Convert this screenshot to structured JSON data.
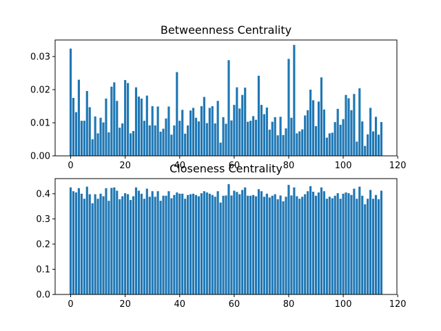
{
  "chart_data": [
    {
      "type": "bar",
      "title": "Betweenness Centrality",
      "xlabel": "",
      "ylabel": "",
      "xlim": [
        -5.7,
        119.7
      ],
      "ylim": [
        0,
        0.035
      ],
      "xticks": [
        0,
        20,
        40,
        60,
        80,
        100,
        120
      ],
      "yticks": [
        0.0,
        0.01,
        0.02,
        0.03
      ],
      "xtick_labels": [
        "0",
        "20",
        "40",
        "60",
        "80",
        "100",
        "120"
      ],
      "ytick_labels": [
        "0.00",
        "0.01",
        "0.02",
        "0.03"
      ],
      "grid": false,
      "color": "#1f77b4",
      "x": [
        0,
        1,
        2,
        3,
        4,
        5,
        6,
        7,
        8,
        9,
        10,
        11,
        12,
        13,
        14,
        15,
        16,
        17,
        18,
        19,
        20,
        21,
        22,
        23,
        24,
        25,
        26,
        27,
        28,
        29,
        30,
        31,
        32,
        33,
        34,
        35,
        36,
        37,
        38,
        39,
        40,
        41,
        42,
        43,
        44,
        45,
        46,
        47,
        48,
        49,
        50,
        51,
        52,
        53,
        54,
        55,
        56,
        57,
        58,
        59,
        60,
        61,
        62,
        63,
        64,
        65,
        66,
        67,
        68,
        69,
        70,
        71,
        72,
        73,
        74,
        75,
        76,
        77,
        78,
        79,
        80,
        81,
        82,
        83,
        84,
        85,
        86,
        87,
        88,
        89,
        90,
        91,
        92,
        93,
        94,
        95,
        96,
        97,
        98,
        99,
        100,
        101,
        102,
        103,
        104,
        105,
        106,
        107,
        108,
        109,
        110,
        111,
        112,
        113,
        114
      ],
      "values": [
        0.0324,
        0.0175,
        0.0132,
        0.023,
        0.0106,
        0.0106,
        0.0196,
        0.0147,
        0.005,
        0.0119,
        0.0068,
        0.0115,
        0.0101,
        0.0173,
        0.0071,
        0.0209,
        0.0222,
        0.0166,
        0.0085,
        0.0098,
        0.0229,
        0.022,
        0.0068,
        0.0075,
        0.0207,
        0.0179,
        0.0173,
        0.0106,
        0.0182,
        0.0092,
        0.015,
        0.0092,
        0.0149,
        0.0073,
        0.0082,
        0.0113,
        0.0149,
        0.0064,
        0.0092,
        0.0253,
        0.0106,
        0.0139,
        0.0067,
        0.0092,
        0.0137,
        0.0145,
        0.0115,
        0.0104,
        0.015,
        0.0178,
        0.0099,
        0.0145,
        0.015,
        0.0098,
        0.0166,
        0.004,
        0.0117,
        0.0097,
        0.0289,
        0.0107,
        0.0154,
        0.0207,
        0.0143,
        0.0184,
        0.0206,
        0.0103,
        0.0106,
        0.012,
        0.0109,
        0.0242,
        0.0154,
        0.0126,
        0.0146,
        0.0079,
        0.0103,
        0.0117,
        0.0062,
        0.0118,
        0.0063,
        0.0083,
        0.0293,
        0.0115,
        0.0335,
        0.0068,
        0.0074,
        0.008,
        0.0122,
        0.0138,
        0.02,
        0.0168,
        0.009,
        0.0164,
        0.0237,
        0.014,
        0.0055,
        0.0068,
        0.007,
        0.0102,
        0.0142,
        0.0094,
        0.0111,
        0.0184,
        0.0174,
        0.0138,
        0.0187,
        0.0043,
        0.0204,
        0.0104,
        0.003,
        0.0065,
        0.0145,
        0.0074,
        0.0118,
        0.0064,
        0.0102
      ]
    },
    {
      "type": "bar",
      "title": "Closeness Centrality",
      "xlabel": "",
      "ylabel": "",
      "xlim": [
        -5.7,
        119.7
      ],
      "ylim": [
        0,
        0.46
      ],
      "xticks": [
        0,
        20,
        40,
        60,
        80,
        100,
        120
      ],
      "yticks": [
        0.0,
        0.1,
        0.2,
        0.3,
        0.4
      ],
      "xtick_labels": [
        "0",
        "20",
        "40",
        "60",
        "80",
        "100",
        "120"
      ],
      "ytick_labels": [
        "0.0",
        "0.1",
        "0.2",
        "0.3",
        "0.4"
      ],
      "grid": false,
      "color": "#1f77b4",
      "x": [
        0,
        1,
        2,
        3,
        4,
        5,
        6,
        7,
        8,
        9,
        10,
        11,
        12,
        13,
        14,
        15,
        16,
        17,
        18,
        19,
        20,
        21,
        22,
        23,
        24,
        25,
        26,
        27,
        28,
        29,
        30,
        31,
        32,
        33,
        34,
        35,
        36,
        37,
        38,
        39,
        40,
        41,
        42,
        43,
        44,
        45,
        46,
        47,
        48,
        49,
        50,
        51,
        52,
        53,
        54,
        55,
        56,
        57,
        58,
        59,
        60,
        61,
        62,
        63,
        64,
        65,
        66,
        67,
        68,
        69,
        70,
        71,
        72,
        73,
        74,
        75,
        76,
        77,
        78,
        79,
        80,
        81,
        82,
        83,
        84,
        85,
        86,
        87,
        88,
        89,
        90,
        91,
        92,
        93,
        94,
        95,
        96,
        97,
        98,
        99,
        100,
        101,
        102,
        103,
        104,
        105,
        106,
        107,
        108,
        109,
        110,
        111,
        112,
        113,
        114
      ],
      "values": [
        0.425,
        0.41,
        0.405,
        0.422,
        0.4,
        0.38,
        0.428,
        0.398,
        0.362,
        0.398,
        0.38,
        0.4,
        0.39,
        0.422,
        0.372,
        0.423,
        0.425,
        0.412,
        0.378,
        0.39,
        0.402,
        0.398,
        0.375,
        0.39,
        0.425,
        0.412,
        0.4,
        0.38,
        0.42,
        0.388,
        0.41,
        0.388,
        0.41,
        0.372,
        0.392,
        0.392,
        0.41,
        0.382,
        0.395,
        0.405,
        0.4,
        0.4,
        0.38,
        0.395,
        0.398,
        0.4,
        0.395,
        0.39,
        0.402,
        0.41,
        0.405,
        0.4,
        0.395,
        0.388,
        0.41,
        0.365,
        0.392,
        0.393,
        0.438,
        0.393,
        0.412,
        0.407,
        0.398,
        0.415,
        0.425,
        0.392,
        0.392,
        0.395,
        0.39,
        0.418,
        0.41,
        0.388,
        0.4,
        0.385,
        0.392,
        0.398,
        0.378,
        0.393,
        0.37,
        0.388,
        0.435,
        0.393,
        0.425,
        0.39,
        0.38,
        0.388,
        0.398,
        0.41,
        0.43,
        0.408,
        0.392,
        0.405,
        0.425,
        0.41,
        0.38,
        0.388,
        0.382,
        0.392,
        0.402,
        0.38,
        0.4,
        0.405,
        0.402,
        0.395,
        0.42,
        0.38,
        0.428,
        0.392,
        0.358,
        0.38,
        0.415,
        0.38,
        0.395,
        0.378,
        0.412
      ]
    }
  ]
}
